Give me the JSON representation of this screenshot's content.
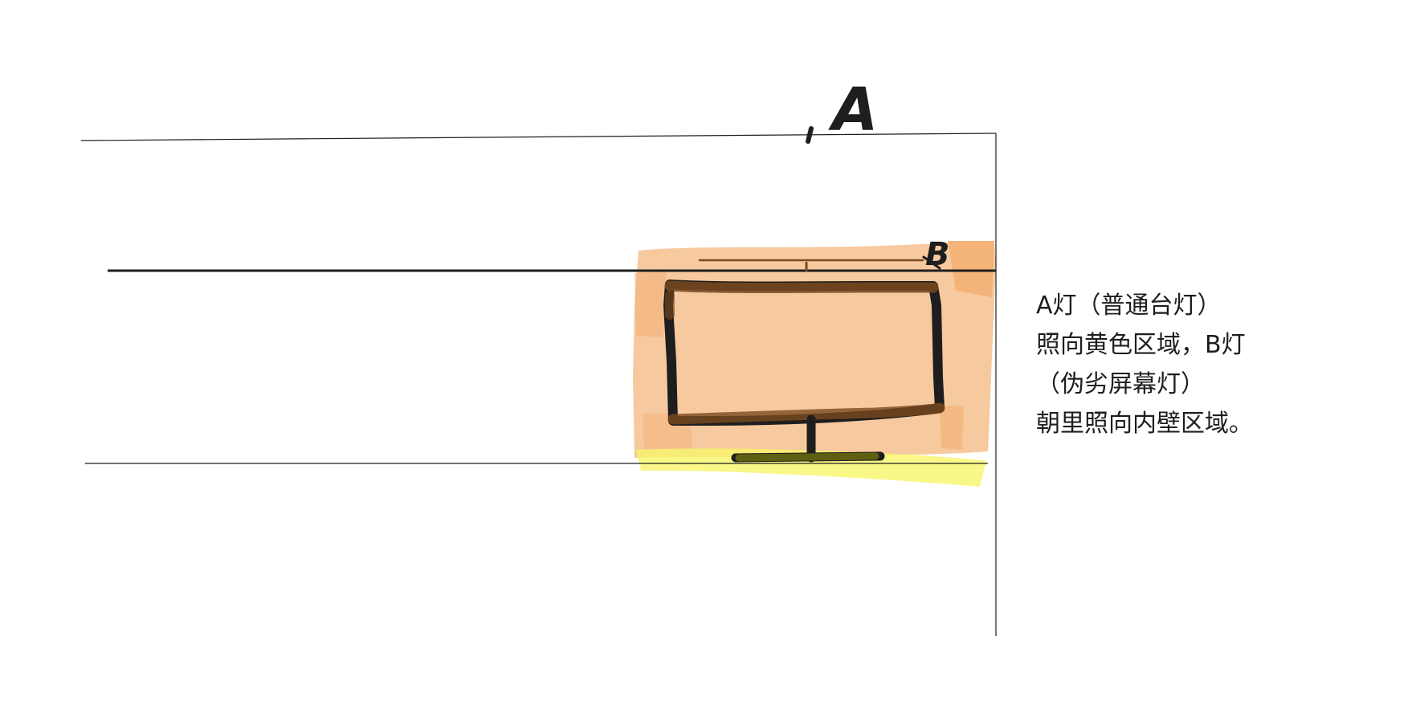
{
  "labels": {
    "lamp_a": "A",
    "lamp_b": "B"
  },
  "note": {
    "lines": [
      "A灯（普通台灯）",
      "照向黄色区域，B灯",
      "（伪劣屏幕灯）",
      "朝里照向内壁区域。"
    ]
  },
  "colors": {
    "ink": "#1e1e1e",
    "inner_wall_highlight": "#f4b77f",
    "inner_wall_highlight_dark": "#ef9a4d",
    "desk_highlight": "#f7f56a",
    "monitor_overlay": "#7a4a1e",
    "stand_overlay": "#6b6b10"
  }
}
